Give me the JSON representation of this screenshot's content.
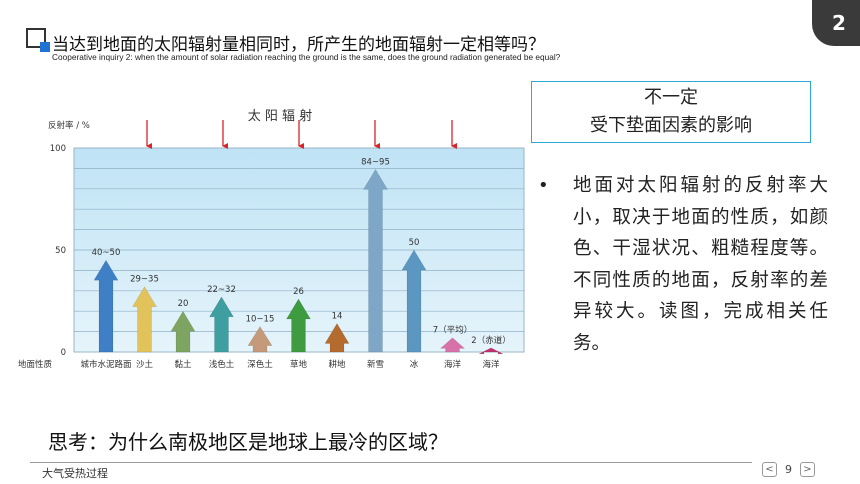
{
  "page_number_badge": "2",
  "title": "当达到地面的太阳辐射量相同时，所产生的地面辐射一定相等吗？",
  "subtitle": "Cooperative inquiry 2: when the amount of solar radiation reaching the ground is the same, does the ground radiation generated be equal?",
  "answer": {
    "line1": "不一定",
    "line2": "受下垫面因素的影响"
  },
  "bullet": {
    "dot": "•",
    "text": "地面对太阳辐射的反射率大小，取决于地面的性质，如颜色、干湿状况、粗糙程度等。不同性质的地面，反射率的差异较大。读图，完成相关任务。"
  },
  "think": "思考：为什么南极地区是地球上最冷的区域？",
  "footer": {
    "course": "大气受热过程",
    "page": "9",
    "prev": "<",
    "next": ">"
  },
  "chart_data": {
    "type": "bar",
    "title": "太 阳 辐 射",
    "ylabel": "反射率 / %",
    "xlabel": "地面性质",
    "ylim": [
      0,
      100
    ],
    "yticks": [
      "0",
      "50",
      "100"
    ],
    "categories": [
      "城市水泥路面",
      "沙土",
      "黏土",
      "浅色土",
      "深色土",
      "草地",
      "耕地",
      "新雪",
      "冰",
      "海洋",
      "海洋"
    ],
    "values": [
      45,
      32,
      20,
      27,
      12.5,
      26,
      14,
      89.5,
      50,
      7,
      2
    ],
    "labels": [
      "40~50",
      "29~35",
      "20",
      "22~32",
      "10~15",
      "26",
      "14",
      "84~95",
      "50",
      "7（平均）",
      "2（赤道）"
    ],
    "colors": [
      "#3f7fc6",
      "#e2c25a",
      "#7ea462",
      "#3f9ea0",
      "#c49a7a",
      "#3f9b3f",
      "#b56a2e",
      "#7ea6c6",
      "#5b97c0",
      "#d772a8",
      "#c4306e"
    ],
    "grid": true,
    "legend": "none"
  }
}
